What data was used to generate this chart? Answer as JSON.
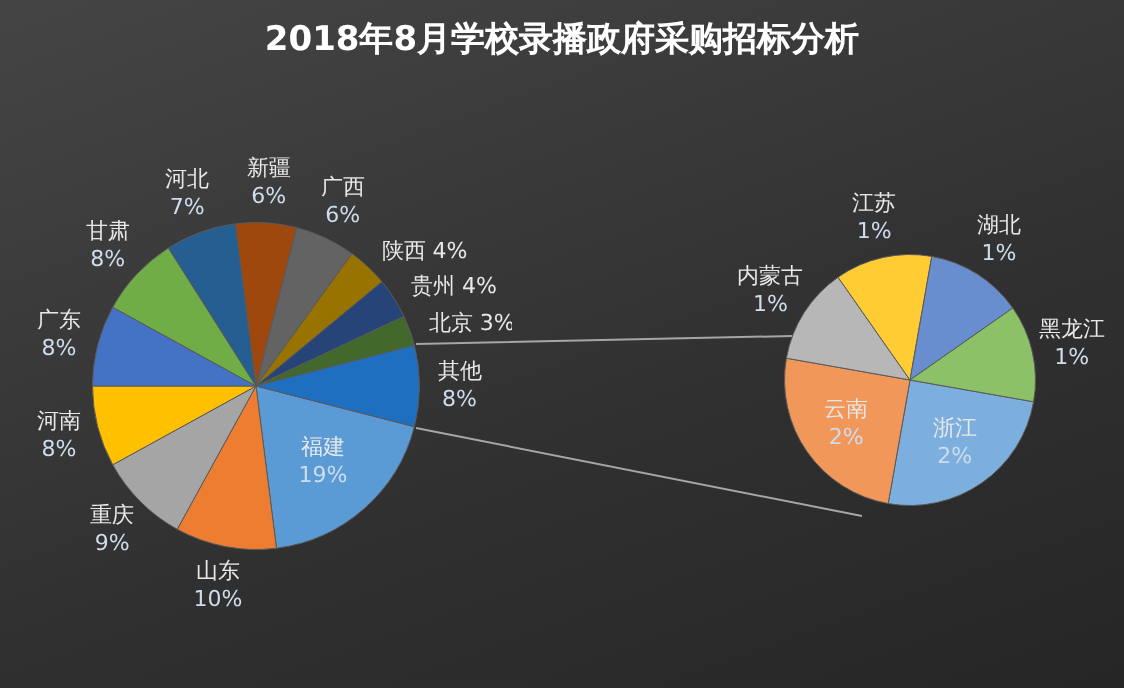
{
  "chart_data": [
    {
      "type": "pie",
      "title": "2018年8月学校录播政府采购招标分析",
      "categories": [
        "福建",
        "山东",
        "重庆",
        "河南",
        "广东",
        "甘肃",
        "河北",
        "新疆",
        "广西",
        "陕西",
        "贵州",
        "北京",
        "其他"
      ],
      "values": [
        19,
        10,
        9,
        8,
        8,
        8,
        7,
        6,
        6,
        4,
        4,
        3,
        8
      ],
      "colors": [
        "#5b9bd5",
        "#ed7d31",
        "#a5a5a5",
        "#ffc000",
        "#4472c4",
        "#70ad47",
        "#255e91",
        "#9e480e",
        "#636363",
        "#997300",
        "#264478",
        "#43682b",
        "#1f6fc0"
      ],
      "value_labels": [
        "19%",
        "10%",
        "9%",
        "8%",
        "8%",
        "8%",
        "7%",
        "6%",
        "6%",
        "4%",
        "4%",
        "3%",
        "8%"
      ]
    },
    {
      "type": "pie",
      "categories": [
        "浙江",
        "云南",
        "内蒙古",
        "江苏",
        "湖北",
        "黑龙江"
      ],
      "values": [
        2,
        2,
        1,
        1,
        1,
        1
      ],
      "colors": [
        "#7cafdd",
        "#f1975a",
        "#b7b7b7",
        "#ffcd33",
        "#698ed0",
        "#8cc168"
      ],
      "value_labels": [
        "2%",
        "2%",
        "1%",
        "1%",
        "1%",
        "1%"
      ]
    }
  ]
}
